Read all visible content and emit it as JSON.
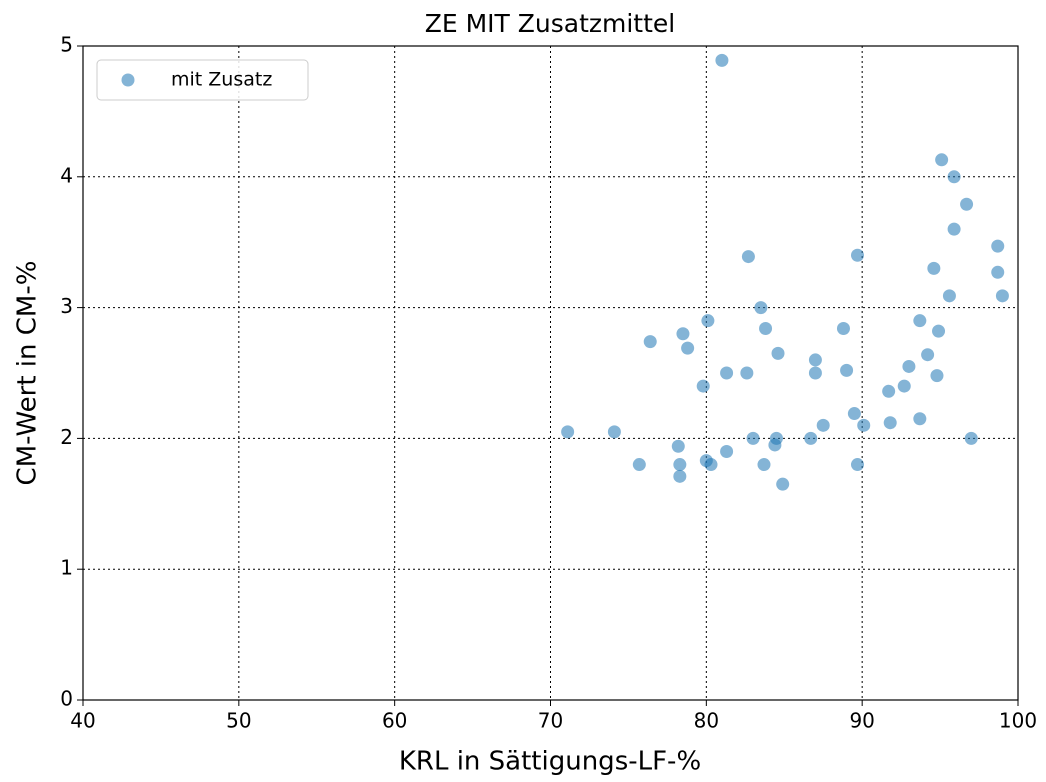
{
  "chart_data": {
    "type": "scatter",
    "title": "ZE MIT Zusatzmittel",
    "x_label": "KRL in Sättigungs-LF-%",
    "y_label": "CM-Wert in CM-%",
    "x": [
      71.1,
      74.1,
      75.7,
      76.4,
      78.2,
      78.5,
      78.8,
      78.3,
      78.3,
      79.8,
      80.1,
      80.0,
      80.3,
      81.0,
      81.3,
      81.3,
      82.6,
      82.7,
      83.0,
      83.5,
      83.7,
      83.8,
      84.4,
      84.5,
      84.6,
      84.9,
      86.7,
      87.0,
      87.0,
      87.5,
      88.8,
      89.0,
      89.5,
      89.7,
      89.7,
      90.1,
      91.7,
      91.8,
      92.7,
      93.0,
      93.7,
      93.7,
      94.2,
      94.6,
      94.8,
      94.9,
      95.1,
      95.6,
      95.9,
      95.9,
      96.7,
      97.0,
      98.7,
      98.7,
      99.0
    ],
    "series": [
      {
        "name": "mit Zusatz",
        "color": "#1f77b4",
        "values": [
          2.05,
          2.05,
          1.8,
          2.74,
          1.94,
          2.8,
          2.69,
          1.8,
          1.71,
          2.4,
          2.9,
          1.83,
          1.8,
          4.89,
          1.9,
          2.5,
          2.5,
          3.39,
          2.0,
          3.0,
          1.8,
          2.84,
          1.95,
          2.0,
          2.65,
          1.65,
          2.0,
          2.6,
          2.5,
          2.1,
          2.84,
          2.52,
          2.19,
          3.4,
          1.8,
          2.1,
          2.36,
          2.12,
          2.4,
          2.55,
          2.9,
          2.15,
          2.64,
          3.3,
          2.48,
          2.82,
          4.13,
          3.09,
          3.6,
          4.0,
          3.79,
          2.0,
          3.47,
          3.27,
          3.09
        ]
      }
    ],
    "xlim": [
      40,
      100
    ],
    "xticks": [
      40,
      50,
      60,
      70,
      80,
      90,
      100
    ],
    "ylim": [
      0,
      5
    ],
    "yticks": [
      0,
      1,
      2,
      3,
      4,
      5
    ],
    "grid": true,
    "legend": "upper left"
  }
}
